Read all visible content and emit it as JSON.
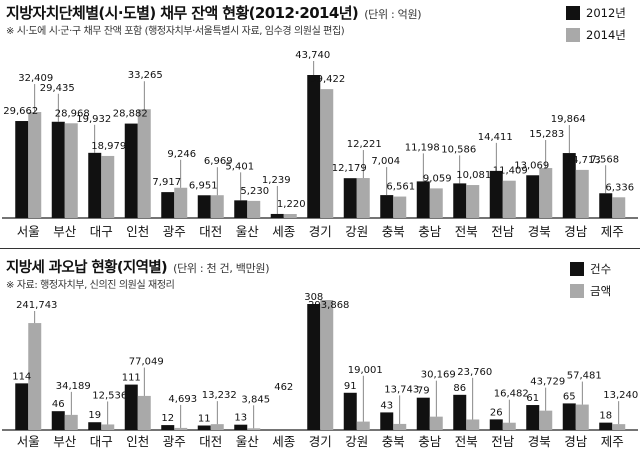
{
  "colors": {
    "dark": "#111111",
    "light": "#a9a9a9",
    "axis": "#222222",
    "leader": "#555555"
  },
  "top": {
    "title": "지방자치단체별(시·도별) 채무 잔액 현황(2012·2014년)",
    "unit": "(단위 : 억원)",
    "note": "※ 시·도에 시·군·구 채무 잔액 포함 (행정자치부·서울특별시 자료, 임수경 의원실 편집)",
    "legend": [
      "2012년",
      "2014년"
    ]
  },
  "bottom": {
    "title": "지방세 과오납 현황(지역별)",
    "unit": "(단위 : 천 건, 백만원)",
    "note": "※ 자료: 행정자치부, 신의진 의원실 재정리",
    "legend": [
      "건수",
      "금액"
    ]
  },
  "chart_data": [
    {
      "type": "bar",
      "title": "지방자치단체별(시·도별) 채무 잔액 현황(2012·2014년)",
      "unit": "억원",
      "categories": [
        "서울",
        "부산",
        "대구",
        "인천",
        "광주",
        "대전",
        "울산",
        "세종",
        "경기",
        "강원",
        "충북",
        "충남",
        "전북",
        "전남",
        "경북",
        "경남",
        "제주"
      ],
      "series": [
        {
          "name": "2012년",
          "values": [
            29662,
            29435,
            19932,
            28882,
            7917,
            6951,
            5401,
            1239,
            43740,
            12179,
            7004,
            11198,
            10586,
            14411,
            13069,
            19864,
            7568
          ]
        },
        {
          "name": "2014년",
          "values": [
            32409,
            28968,
            18979,
            33265,
            9246,
            6969,
            5230,
            1220,
            39422,
            12221,
            6561,
            9059,
            10081,
            11409,
            15283,
            14713,
            6336
          ]
        }
      ]
    },
    {
      "type": "bar",
      "title": "지방세 과오납 현황(지역별)",
      "unit": "천 건, 백만원",
      "categories": [
        "서울",
        "부산",
        "대구",
        "인천",
        "광주",
        "대전",
        "울산",
        "세종",
        "경기",
        "강원",
        "충북",
        "충남",
        "전북",
        "전남",
        "경북",
        "경남",
        "제주"
      ],
      "series": [
        {
          "name": "건수",
          "values": [
            114,
            46,
            19,
            111,
            12,
            11,
            13,
            462,
            308,
            91,
            43,
            79,
            86,
            26,
            61,
            65,
            18
          ]
        },
        {
          "name": "금액",
          "values": [
            241743,
            34189,
            12536,
            77049,
            4693,
            13232,
            3845,
            null,
            293868,
            19001,
            13743,
            30169,
            23760,
            16482,
            43729,
            57481,
            13240
          ]
        }
      ]
    }
  ]
}
